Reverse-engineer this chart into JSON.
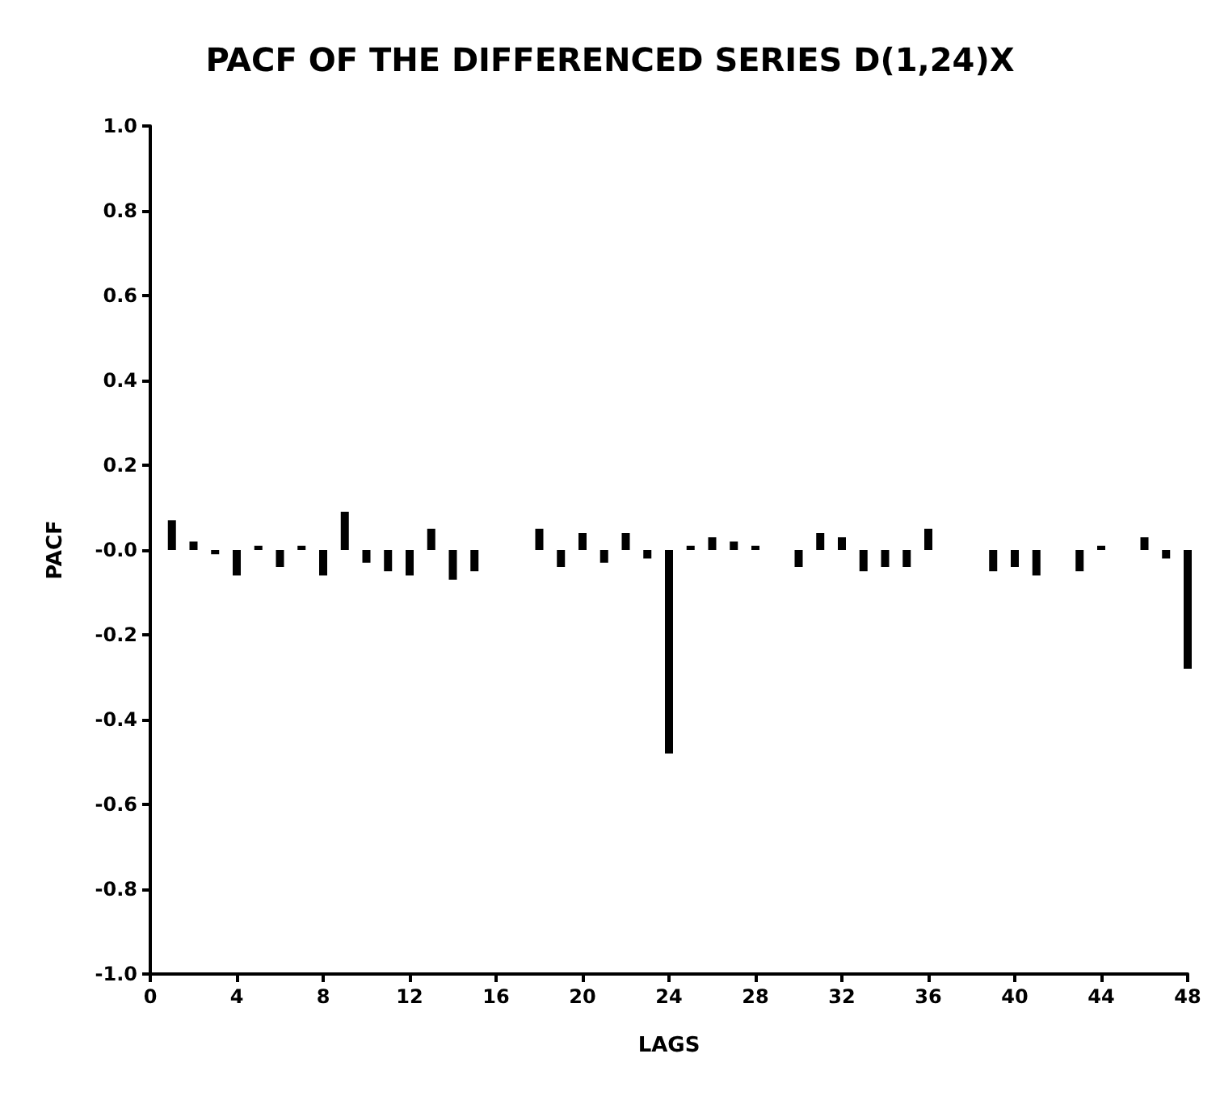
{
  "chart_data": {
    "type": "bar",
    "title": "PACF OF THE DIFFERENCED SERIES D(1,24)X",
    "xlabel": "LAGS",
    "ylabel": "PACF",
    "x": [
      1,
      2,
      3,
      4,
      5,
      6,
      7,
      8,
      9,
      10,
      11,
      12,
      13,
      14,
      15,
      16,
      17,
      18,
      19,
      20,
      21,
      22,
      23,
      24,
      25,
      26,
      27,
      28,
      29,
      30,
      31,
      32,
      33,
      34,
      35,
      36,
      37,
      38,
      39,
      40,
      41,
      42,
      43,
      44,
      45,
      46,
      47,
      48
    ],
    "values": [
      0.07,
      0.02,
      -0.01,
      -0.06,
      0.01,
      -0.04,
      0.01,
      -0.06,
      0.09,
      -0.03,
      -0.05,
      -0.06,
      0.05,
      -0.07,
      -0.05,
      0.0,
      0.0,
      0.05,
      -0.04,
      0.04,
      -0.03,
      0.04,
      -0.02,
      -0.48,
      0.01,
      0.03,
      0.02,
      0.01,
      0.0,
      -0.04,
      0.04,
      0.03,
      -0.05,
      -0.04,
      -0.04,
      0.05,
      0.0,
      0.0,
      -0.05,
      -0.04,
      -0.06,
      0.0,
      -0.05,
      0.01,
      0.0,
      0.03,
      -0.02,
      -0.28
    ],
    "color": "#000000",
    "xlim": [
      0,
      48
    ],
    "xticks": [
      0,
      4,
      8,
      12,
      16,
      20,
      24,
      28,
      32,
      36,
      40,
      44,
      48
    ],
    "ylim": [
      -1,
      1
    ],
    "yticks": [
      {
        "value": 1,
        "label": "1.0"
      },
      {
        "value": 0.8,
        "label": "0.8"
      },
      {
        "value": 0.6,
        "label": "0.6"
      },
      {
        "value": 0.4,
        "label": "0.4"
      },
      {
        "value": 0.2,
        "label": "0.2"
      },
      {
        "value": 0,
        "label": "-0.0"
      },
      {
        "value": -0.2,
        "label": "-0.2"
      },
      {
        "value": -0.4,
        "label": "-0.4"
      },
      {
        "value": -0.6,
        "label": "-0.6"
      },
      {
        "value": -0.8,
        "label": "-0.8"
      },
      {
        "value": -1,
        "label": "-1.0"
      }
    ],
    "grid": false
  }
}
